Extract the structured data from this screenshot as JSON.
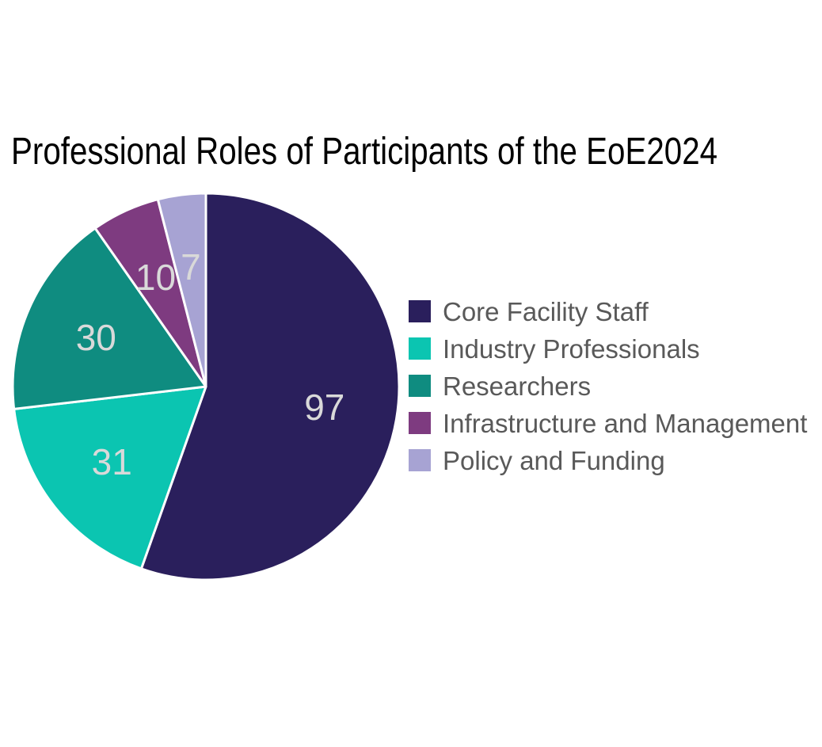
{
  "chart_data": {
    "type": "pie",
    "title": "Professional Roles of Participants of the EoE2024",
    "total": 175,
    "start_angle": "12-oclock",
    "direction": "clockwise",
    "series": [
      {
        "label": "Core Facility Staff",
        "value": 97,
        "color": "#2a1f5c"
      },
      {
        "label": "Industry Professionals",
        "value": 31,
        "color": "#0bc5b1"
      },
      {
        "label": "Researchers",
        "value": 30,
        "color": "#0f8c80"
      },
      {
        "label": "Infrastructure and Management",
        "value": 10,
        "color": "#7e3b80"
      },
      {
        "label": "Policy and Funding",
        "value": 7,
        "color": "#a7a3d3"
      }
    ],
    "slice_border_color": "#ffffff",
    "slice_label_color": "#d9d9d9",
    "legend": {
      "position": "right",
      "text_color": "#595959"
    },
    "title_color": "#000000",
    "background_color": "#ffffff"
  }
}
